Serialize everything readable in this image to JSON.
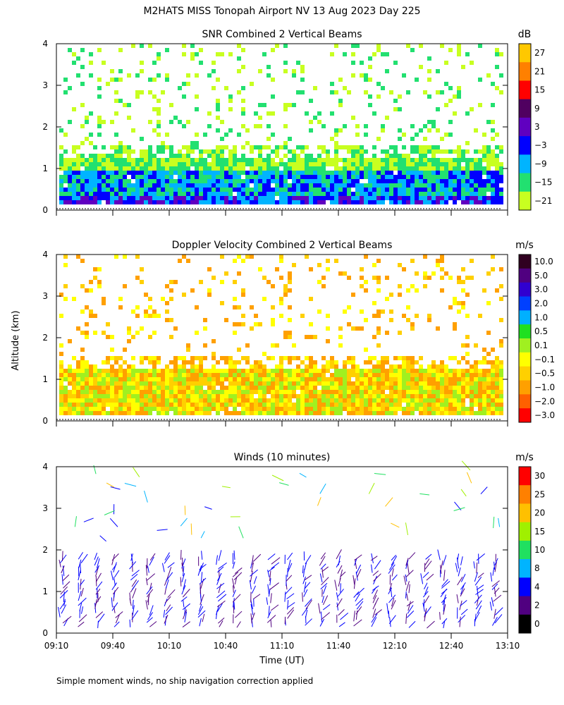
{
  "figure_title": "M2HATS MISS Tonopah Airport NV  13 Aug 2023 Day 225",
  "y_axis_label": "Altitude (km)",
  "x_axis_label": "Time (UT)",
  "footnote": "Simple moment winds, no ship navigation correction applied",
  "chart_data": [
    {
      "type": "heatmap",
      "title": "SNR Combined 2 Vertical Beams",
      "colorbar_unit": "dB",
      "colorbar_ticks": [
        "27",
        "21",
        "15",
        "9",
        "3",
        "−3",
        "−9",
        "−15",
        "−21"
      ],
      "colorbar_colors": [
        "#ffc800",
        "#ff8000",
        "#ff0000",
        "#500060",
        "#6000c0",
        "#0000ff",
        "#00b4ff",
        "#22e070",
        "#c8ff20"
      ],
      "x_ticks": [
        "09:10",
        "09:40",
        "10:10",
        "10:40",
        "11:10",
        "11:40",
        "12:10",
        "12:40",
        "13:10"
      ],
      "y_ticks": [
        "0",
        "1",
        "2",
        "3",
        "4"
      ],
      "ylim": [
        0,
        4
      ],
      "x_range": [
        "09:10",
        "13:10"
      ]
    },
    {
      "type": "heatmap",
      "title": "Doppler Velocity Combined 2 Vertical Beams",
      "colorbar_unit": "m/s",
      "colorbar_ticks": [
        "10.0",
        "5.0",
        "3.0",
        "2.0",
        "1.0",
        "0.5",
        "0.1",
        "−0.1",
        "−0.5",
        "−1.0",
        "−2.0",
        "−3.0"
      ],
      "colorbar_colors": [
        "#300020",
        "#500080",
        "#3000d0",
        "#0040ff",
        "#00b0ff",
        "#20e020",
        "#a0f020",
        "#ffff00",
        "#ffd000",
        "#ffa000",
        "#ff6000",
        "#ff0000"
      ],
      "x_ticks": [
        "09:10",
        "09:40",
        "10:10",
        "10:40",
        "11:10",
        "11:40",
        "12:10",
        "12:40",
        "13:10"
      ],
      "y_ticks": [
        "0",
        "1",
        "2",
        "3",
        "4"
      ],
      "ylim": [
        0,
        4
      ],
      "x_range": [
        "09:10",
        "13:10"
      ]
    },
    {
      "type": "scatter",
      "title": "Winds (10 minutes)",
      "colorbar_unit": "m/s",
      "colorbar_ticks": [
        "30",
        "25",
        "20",
        "15",
        "10",
        "8",
        "4",
        "2",
        "0"
      ],
      "colorbar_colors": [
        "#ff0000",
        "#ff8000",
        "#ffc000",
        "#a0f000",
        "#20e060",
        "#00b4ff",
        "#0000ff",
        "#500080",
        "#000000"
      ],
      "x_ticks": [
        "09:10",
        "09:40",
        "10:10",
        "10:40",
        "11:10",
        "11:40",
        "12:10",
        "12:40",
        "13:10"
      ],
      "y_ticks": [
        "0",
        "1",
        "2",
        "3",
        "4"
      ],
      "ylim": [
        0,
        4
      ],
      "x_range": [
        "09:10",
        "13:10"
      ]
    }
  ]
}
